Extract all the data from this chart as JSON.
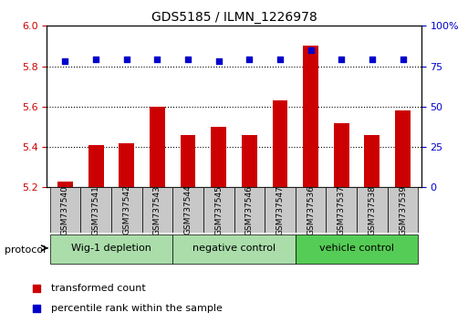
{
  "title": "GDS5185 / ILMN_1226978",
  "samples": [
    "GSM737540",
    "GSM737541",
    "GSM737542",
    "GSM737543",
    "GSM737544",
    "GSM737545",
    "GSM737546",
    "GSM737547",
    "GSM737536",
    "GSM737537",
    "GSM737538",
    "GSM737539"
  ],
  "bar_values": [
    5.23,
    5.41,
    5.42,
    5.6,
    5.46,
    5.5,
    5.46,
    5.63,
    5.9,
    5.52,
    5.46,
    5.58
  ],
  "percentile_values": [
    78,
    79,
    79,
    79,
    79,
    78,
    79,
    79,
    85,
    79,
    79,
    79
  ],
  "groups": [
    {
      "label": "Wig-1 depletion",
      "start": 0,
      "end": 4,
      "color": "#aaddaa"
    },
    {
      "label": "negative control",
      "start": 4,
      "end": 8,
      "color": "#aaddaa"
    },
    {
      "label": "vehicle control",
      "start": 8,
      "end": 12,
      "color": "#55cc55"
    }
  ],
  "ylim_left": [
    5.2,
    6.0
  ],
  "ylim_right": [
    0,
    100
  ],
  "yticks_left": [
    5.2,
    5.4,
    5.6,
    5.8,
    6.0
  ],
  "yticks_right": [
    0,
    25,
    50,
    75,
    100
  ],
  "ytick_right_labels": [
    "0",
    "25",
    "50",
    "75",
    "100%"
  ],
  "bar_color": "#cc0000",
  "dot_color": "#0000cc",
  "bar_bottom": 5.2,
  "grid_values": [
    5.4,
    5.6,
    5.8
  ],
  "background_color": "#ffffff",
  "sample_box_color": "#c8c8c8"
}
